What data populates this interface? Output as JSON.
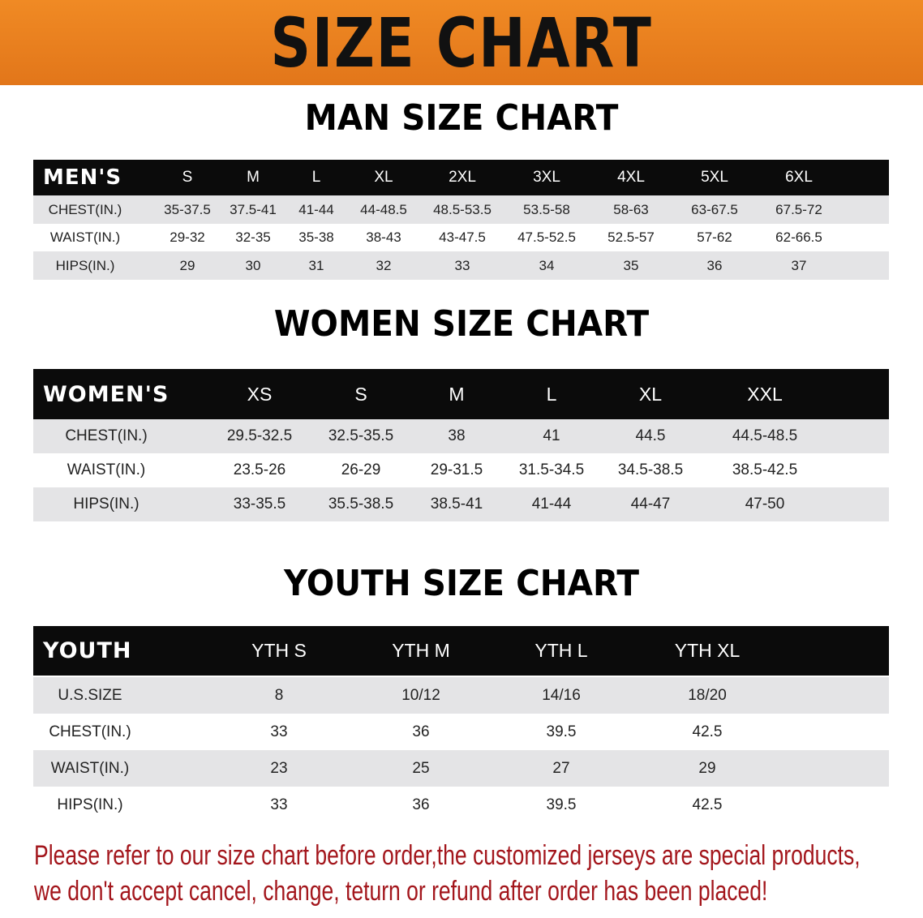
{
  "title": "SIZE CHART",
  "colors": {
    "banner": "#e8791a",
    "header_row": "#0b0b0b",
    "stripe": "#e4e4e6",
    "notice_text": "#a3161c"
  },
  "men": {
    "section_title": "MAN SIZE CHART",
    "header": [
      "MEN'S",
      "S",
      "M",
      "L",
      "XL",
      "2XL",
      "3XL",
      "4XL",
      "5XL",
      "6XL"
    ],
    "rows": [
      [
        "CHEST(IN.)",
        "35-37.5",
        "37.5-41",
        "41-44",
        "44-48.5",
        "48.5-53.5",
        "53.5-58",
        "58-63",
        "63-67.5",
        "67.5-72"
      ],
      [
        "WAIST(IN.)",
        "29-32",
        "32-35",
        "35-38",
        "38-43",
        "43-47.5",
        "47.5-52.5",
        "52.5-57",
        "57-62",
        "62-66.5"
      ],
      [
        "HIPS(IN.)",
        "29",
        "30",
        "31",
        "32",
        "33",
        "34",
        "35",
        "36",
        "37"
      ]
    ]
  },
  "women": {
    "section_title": "WOMEN SIZE CHART",
    "header": [
      "WOMEN'S",
      "XS",
      "S",
      "M",
      "L",
      "XL",
      "XXL"
    ],
    "rows": [
      [
        "CHEST(IN.)",
        "29.5-32.5",
        "32.5-35.5",
        "38",
        "41",
        "44.5",
        "44.5-48.5"
      ],
      [
        "WAIST(IN.)",
        "23.5-26",
        "26-29",
        "29-31.5",
        "31.5-34.5",
        "34.5-38.5",
        "38.5-42.5"
      ],
      [
        "HIPS(IN.)",
        "33-35.5",
        "35.5-38.5",
        "38.5-41",
        "41-44",
        "44-47",
        "47-50"
      ]
    ]
  },
  "youth": {
    "section_title": "YOUTH SIZE CHART",
    "header": [
      "YOUTH",
      "YTH S",
      "YTH M",
      "YTH L",
      "YTH XL"
    ],
    "rows": [
      [
        "U.S.SIZE",
        "8",
        "10/12",
        "14/16",
        "18/20"
      ],
      [
        "CHEST(IN.)",
        "33",
        "36",
        "39.5",
        "42.5"
      ],
      [
        "WAIST(IN.)",
        "23",
        "25",
        "27",
        "29"
      ],
      [
        "HIPS(IN.)",
        "33",
        "36",
        "39.5",
        "42.5"
      ]
    ]
  },
  "notice": {
    "line1": "Please refer to our size chart before order,the customized jerseys are special products,",
    "line2": "we don't accept cancel, change, teturn or refund after order has been placed!"
  }
}
